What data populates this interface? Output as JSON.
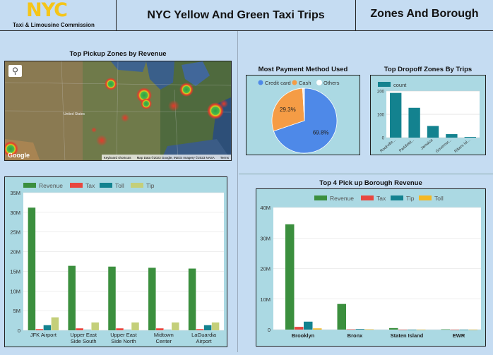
{
  "header": {
    "logo_text": "NYC",
    "logo_subtitle": "Taxi & Limousine Commission",
    "title": "NYC Yellow And Green Taxi Trips",
    "page_name": "Zones And Borough"
  },
  "colors": {
    "revenue": "#3b8f3e",
    "tax": "#e8473f",
    "toll": "#13828f",
    "tip": "#c4cf7a",
    "borough_toll": "#f4b824",
    "credit_card": "#4e89e8",
    "cash": "#f59c45",
    "count": "#13828f"
  },
  "map": {
    "title": "Top Pickup Zones by Revenue",
    "attribution": [
      "Keyboard shortcuts",
      "Map Data ©2023 Google, INEGI Imagery ©2023 NASA",
      "Terms"
    ],
    "google_label": "Google",
    "place_labels": [
      "United States"
    ]
  },
  "payment": {
    "title": "Most Payment Method Used",
    "legend": [
      "Credit card",
      "Cash",
      "Others"
    ],
    "slice_labels": [
      "69.8%",
      "29.3%"
    ],
    "chart_data": {
      "type": "pie",
      "labels": [
        "Credit card",
        "Cash",
        "Others"
      ],
      "values": [
        69.8,
        29.3,
        0.9
      ]
    }
  },
  "dropoff": {
    "title": "Top Dropoff Zones By Trips",
    "legend_label": "count",
    "y_ticks": [
      "0",
      "100",
      "200"
    ],
    "chart_data": {
      "type": "bar",
      "categories": [
        "Rockville...",
        "Parkfield...",
        "Jamaica",
        "Governor...",
        "Rikers Isl..."
      ],
      "series": [
        {
          "name": "count",
          "values": [
            192,
            128,
            50,
            15,
            3
          ]
        }
      ],
      "ylim": [
        0,
        200
      ]
    }
  },
  "zones": {
    "legend": [
      "Revenue",
      "Tax",
      "Toll",
      "Tip"
    ],
    "y_ticks": [
      "0",
      "5M",
      "10M",
      "15M",
      "20M",
      "25M",
      "30M",
      "35M"
    ],
    "chart_data": {
      "type": "bar",
      "categories": [
        "JFK Airport",
        "Upper East Side South",
        "Upper East Side North",
        "Midtown Center",
        "LaGuardia Airport"
      ],
      "category_lines": [
        [
          "JFK Airport"
        ],
        [
          "Upper East",
          "Side South"
        ],
        [
          "Upper East",
          "Side North"
        ],
        [
          "Midtown",
          "Center"
        ],
        [
          "LaGuardia",
          "Airport"
        ]
      ],
      "series": [
        {
          "name": "Revenue",
          "values": [
            31.2,
            16.4,
            16.2,
            15.9,
            15.7
          ]
        },
        {
          "name": "Tax",
          "values": [
            0.3,
            0.5,
            0.5,
            0.5,
            0.3
          ]
        },
        {
          "name": "Toll",
          "values": [
            1.3,
            0.1,
            0.1,
            0.1,
            1.3
          ]
        },
        {
          "name": "Tip",
          "values": [
            3.3,
            2.0,
            2.0,
            2.0,
            2.0
          ]
        }
      ],
      "ylim": [
        0,
        35
      ]
    }
  },
  "borough": {
    "title": "Top 4 Pick up Borough Revenue",
    "legend": [
      "Revenue",
      "Tax",
      "Tip",
      "Toll"
    ],
    "y_ticks": [
      "0",
      "10M",
      "20M",
      "30M",
      "40M"
    ],
    "chart_data": {
      "type": "bar",
      "categories": [
        "Brooklyn",
        "Bronx",
        "Staten Island",
        "EWR"
      ],
      "series": [
        {
          "name": "Revenue",
          "values": [
            34.5,
            8.4,
            0.5,
            0.1
          ]
        },
        {
          "name": "Tax",
          "values": [
            0.9,
            0.1,
            0.0,
            0.0
          ]
        },
        {
          "name": "Tip",
          "values": [
            2.6,
            0.2,
            0.0,
            0.0
          ]
        },
        {
          "name": "Toll",
          "values": [
            0.4,
            0.1,
            0.0,
            0.0
          ]
        }
      ],
      "ylim": [
        0,
        40
      ]
    }
  }
}
